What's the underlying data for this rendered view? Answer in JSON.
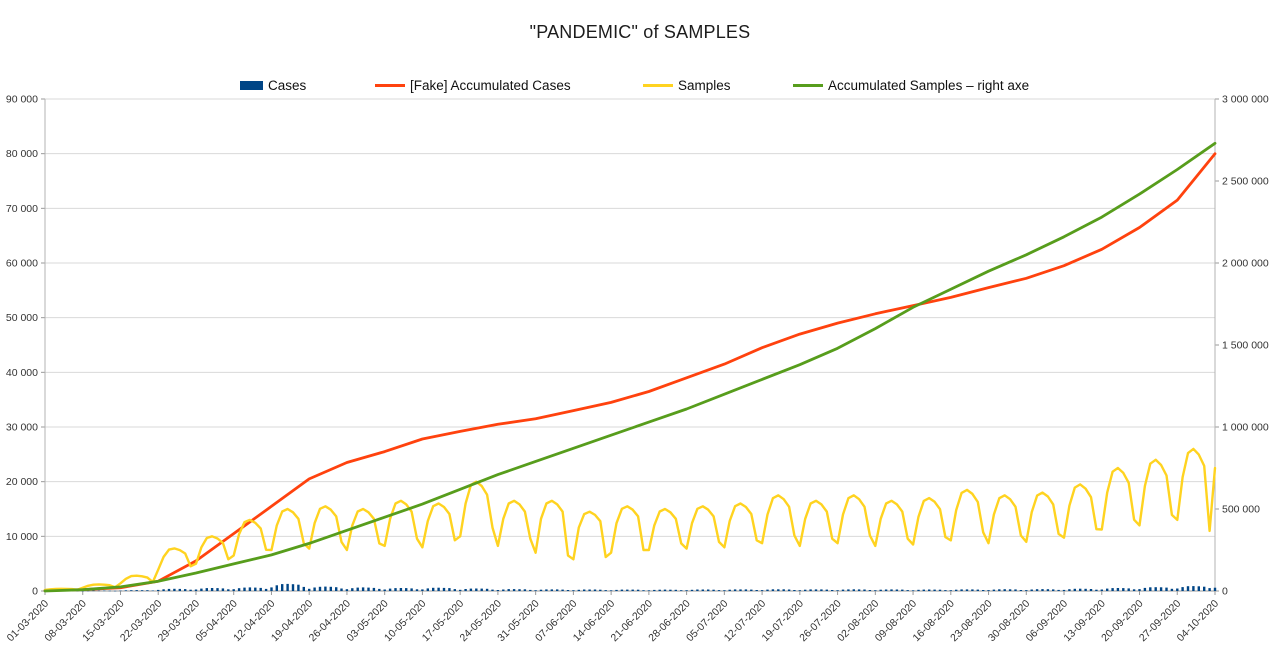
{
  "title": "\"PANDEMIC\" of SAMPLES",
  "legend": [
    {
      "label": "Cases",
      "color": "#004586",
      "type": "bar"
    },
    {
      "label": "[Fake] Accumulated Cases",
      "color": "#FF420E",
      "type": "line"
    },
    {
      "label": "Samples",
      "color": "#FFD320",
      "type": "line"
    },
    {
      "label": "Accumulated Samples – right axe",
      "color": "#579D1C",
      "type": "line"
    }
  ],
  "chart_data": {
    "type": "line",
    "title": "\"PANDEMIC\" of SAMPLES",
    "grid": true,
    "legend_position": "top",
    "x_labels": [
      "01-03-2020",
      "08-03-2020",
      "15-03-2020",
      "22-03-2020",
      "29-03-2020",
      "05-04-2020",
      "12-04-2020",
      "19-04-2020",
      "26-04-2020",
      "03-05-2020",
      "10-05-2020",
      "17-05-2020",
      "24-05-2020",
      "31-05-2020",
      "07-06-2020",
      "14-06-2020",
      "21-06-2020",
      "28-06-2020",
      "05-07-2020",
      "12-07-2020",
      "19-07-2020",
      "26-07-2020",
      "02-08-2020",
      "09-08-2020",
      "16-08-2020",
      "23-08-2020",
      "30-08-2020",
      "06-09-2020",
      "13-09-2020",
      "20-09-2020",
      "27-09-2020",
      "04-10-2020"
    ],
    "x_label_step_days": 7,
    "left_axis": {
      "min": 0,
      "max": 90000,
      "tick_step": 10000,
      "tick_labels": [
        "0",
        "10 000",
        "20 000",
        "30 000",
        "40 000",
        "50 000",
        "60 000",
        "70 000",
        "80 000",
        "90 000"
      ]
    },
    "right_axis": {
      "min": 0,
      "max": 3000000,
      "tick_step": 500000,
      "tick_labels": [
        "0",
        "500 000",
        "1 000 000",
        "1 500 000",
        "2 000 000",
        "2 500 000",
        "3 000 000"
      ]
    },
    "series": [
      {
        "name": "Cases",
        "axis": "left",
        "type": "bar",
        "color": "#004586",
        "x_step": 1,
        "values": [
          15,
          24,
          29,
          30,
          29,
          26,
          17,
          35,
          56,
          68,
          70,
          67,
          62,
          41,
          80,
          128,
          155,
          160,
          154,
          141,
          93,
          200,
          320,
          388,
          400,
          384,
          352,
          232,
          275,
          440,
          534,
          550,
          528,
          484,
          319,
          325,
          520,
          631,
          650,
          624,
          572,
          377,
          650,
          1040,
          1261,
          1300,
          1248,
          1144,
          754,
          400,
          640,
          776,
          800,
          768,
          704,
          464,
          325,
          520,
          631,
          650,
          624,
          572,
          377,
          275,
          440,
          534,
          550,
          528,
          484,
          319,
          300,
          480,
          582,
          600,
          576,
          528,
          348,
          225,
          360,
          437,
          450,
          432,
          396,
          261,
          175,
          280,
          340,
          350,
          336,
          308,
          203,
          150,
          240,
          291,
          300,
          288,
          264,
          174,
          140,
          224,
          272,
          280,
          269,
          246,
          162,
          130,
          208,
          252,
          260,
          250,
          229,
          151,
          125,
          200,
          243,
          250,
          240,
          220,
          145,
          140,
          224,
          272,
          280,
          269,
          246,
          162,
          150,
          240,
          291,
          300,
          288,
          264,
          174,
          160,
          256,
          310,
          320,
          307,
          282,
          186,
          150,
          240,
          291,
          300,
          288,
          264,
          174,
          155,
          248,
          301,
          310,
          298,
          273,
          180,
          145,
          232,
          281,
          290,
          278,
          255,
          168,
          135,
          216,
          262,
          270,
          259,
          238,
          157,
          150,
          240,
          291,
          300,
          288,
          264,
          174,
          165,
          264,
          320,
          330,
          317,
          290,
          191,
          170,
          272,
          330,
          340,
          326,
          299,
          197,
          210,
          336,
          407,
          420,
          403,
          370,
          244,
          275,
          440,
          534,
          550,
          528,
          484,
          319,
          350,
          560,
          679,
          700,
          672,
          616,
          406,
          450,
          720,
          873,
          900,
          864,
          792,
          522,
          600
        ]
      },
      {
        "name": "[Fake] Accumulated Cases",
        "axis": "left",
        "type": "line",
        "color": "#FF420E",
        "x_step": 7,
        "width": 2.8,
        "values": [
          100,
          250,
          600,
          1800,
          5500,
          10500,
          15500,
          20500,
          23500,
          25500,
          27800,
          29200,
          30500,
          31500,
          33000,
          34500,
          36500,
          39000,
          41500,
          44500,
          47000,
          49000,
          50700,
          52200,
          53700,
          55500,
          57200,
          59500,
          62500,
          66500,
          71500,
          80000
        ]
      },
      {
        "name": "Samples",
        "axis": "left",
        "type": "line",
        "color": "#FFD320",
        "x_step": 1,
        "width": 2.4,
        "values": [
          200,
          320,
          390,
          400,
          380,
          350,
          230,
          600,
          960,
          1160,
          1200,
          1150,
          1060,
          700,
          1400,
          2240,
          2720,
          2800,
          2690,
          2460,
          1620,
          3900,
          6240,
          7570,
          7800,
          7490,
          6860,
          4520,
          5000,
          8000,
          9700,
          10000,
          9600,
          8800,
          5800,
          6500,
          10400,
          12600,
          13000,
          12480,
          11440,
          7540,
          7500,
          12000,
          14550,
          15000,
          14400,
          13200,
          8700,
          7750,
          12400,
          15040,
          15500,
          14880,
          13640,
          8990,
          7500,
          12000,
          14550,
          15000,
          14400,
          13200,
          8700,
          8250,
          13200,
          16000,
          16500,
          15840,
          14520,
          9570,
          8000,
          12800,
          15520,
          16000,
          15360,
          14080,
          9280,
          10000,
          16000,
          19400,
          20000,
          19200,
          17600,
          11600,
          8250,
          13200,
          16000,
          16500,
          15840,
          14520,
          9570,
          7000,
          13200,
          16000,
          16500,
          15840,
          14520,
          6500,
          5800,
          11600,
          14070,
          14500,
          13920,
          12760,
          6200,
          7000,
          12400,
          15040,
          15500,
          14880,
          13640,
          7500,
          7500,
          12000,
          14550,
          15000,
          14400,
          13200,
          8700,
          7750,
          12400,
          15040,
          15500,
          14880,
          13640,
          8990,
          8000,
          12800,
          15520,
          16000,
          15360,
          14080,
          9280,
          8750,
          14000,
          16980,
          17500,
          16800,
          15400,
          10150,
          8250,
          13200,
          16000,
          16500,
          15840,
          14520,
          9570,
          8750,
          14000,
          16980,
          17500,
          16800,
          15400,
          10150,
          8250,
          13200,
          16000,
          16500,
          15840,
          14520,
          9570,
          8500,
          13600,
          16490,
          17000,
          16320,
          14960,
          9860,
          9250,
          14800,
          17950,
          18500,
          17760,
          16280,
          10730,
          8750,
          14000,
          16980,
          17500,
          16800,
          15400,
          10150,
          9000,
          14400,
          17460,
          18000,
          17280,
          15840,
          10440,
          9750,
          15600,
          18920,
          19500,
          18720,
          17160,
          11310,
          11250,
          18000,
          21830,
          22500,
          21600,
          19800,
          13050,
          12000,
          19200,
          23280,
          24000,
          23040,
          21120,
          13920,
          13000,
          20800,
          25220,
          26000,
          24960,
          22880,
          11000,
          22500
        ]
      },
      {
        "name": "Accumulated Samples – right axe",
        "axis": "right",
        "type": "line",
        "color": "#579D1C",
        "x_step": 7,
        "width": 2.8,
        "values": [
          0,
          8000,
          25000,
          60000,
          110000,
          165000,
          220000,
          290000,
          370000,
          450000,
          530000,
          620000,
          710000,
          790000,
          870000,
          950000,
          1030000,
          1110000,
          1200000,
          1290000,
          1380000,
          1480000,
          1600000,
          1730000,
          1840000,
          1950000,
          2050000,
          2160000,
          2280000,
          2420000,
          2570000,
          2730000
        ]
      }
    ]
  }
}
